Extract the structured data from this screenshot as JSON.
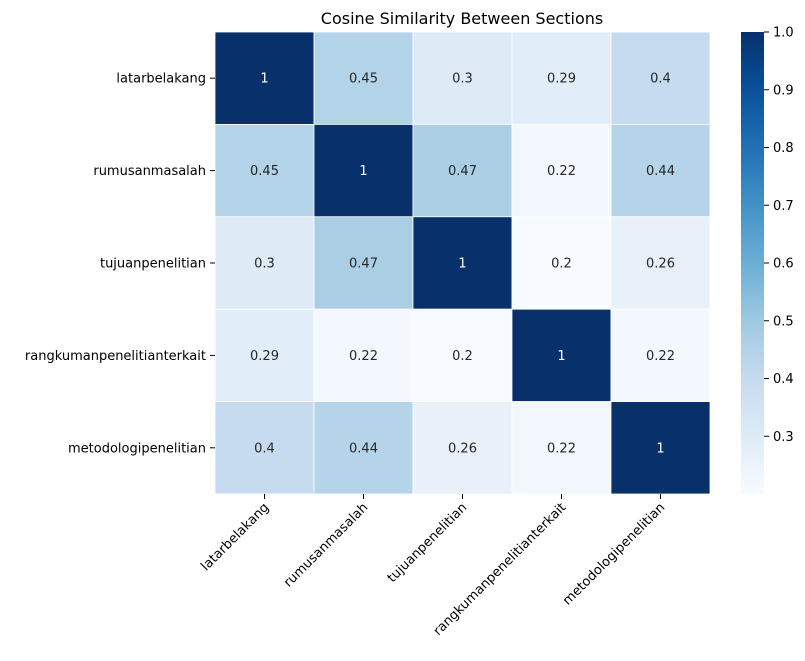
{
  "chart_data": {
    "type": "heatmap",
    "title": "Cosine Similarity Between Sections",
    "xlabel": "",
    "ylabel": "",
    "x_categories": [
      "latarbelakang",
      "rumusanmasalah",
      "tujuanpenelitian",
      "rangkumanpenelitianterkait",
      "metodologipenelitian"
    ],
    "y_categories": [
      "latarbelakang",
      "rumusanmasalah",
      "tujuanpenelitian",
      "rangkumanpenelitianterkait",
      "metodologipenelitian"
    ],
    "values": [
      [
        1,
        0.45,
        0.3,
        0.29,
        0.4
      ],
      [
        0.45,
        1,
        0.47,
        0.22,
        0.44
      ],
      [
        0.3,
        0.47,
        1,
        0.2,
        0.26
      ],
      [
        0.29,
        0.22,
        0.2,
        1,
        0.22
      ],
      [
        0.4,
        0.44,
        0.26,
        0.22,
        1
      ]
    ],
    "cell_labels": [
      [
        "1",
        "0.45",
        "0.3",
        "0.29",
        "0.4"
      ],
      [
        "0.45",
        "1",
        "0.47",
        "0.22",
        "0.44"
      ],
      [
        "0.3",
        "0.47",
        "1",
        "0.2",
        "0.26"
      ],
      [
        "0.29",
        "0.22",
        "0.2",
        "1",
        "0.22"
      ],
      [
        "0.4",
        "0.44",
        "0.26",
        "0.22",
        "1"
      ]
    ],
    "colormap": "Blues",
    "vmin": 0.2,
    "vmax": 1.0,
    "colorbar_ticks": [
      0.3,
      0.4,
      0.5,
      0.6,
      0.7,
      0.8,
      0.9,
      1.0
    ],
    "colorbar_tick_labels": [
      "0.3",
      "0.4",
      "0.5",
      "0.6",
      "0.7",
      "0.8",
      "0.9",
      "1.0"
    ],
    "grid_line_color": "#ffffff"
  }
}
